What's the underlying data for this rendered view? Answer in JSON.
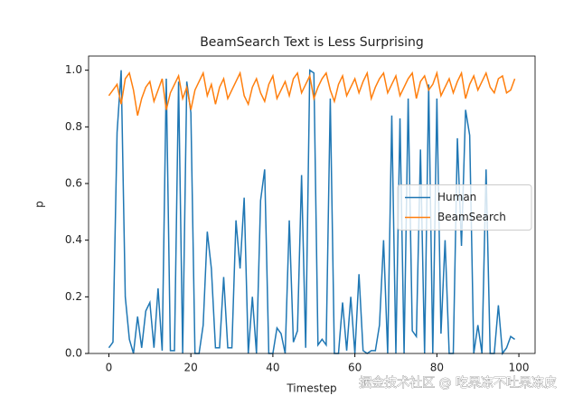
{
  "chart_data": {
    "type": "line",
    "title": "BeamSearch Text is Less Surprising",
    "xlabel": "Timestep",
    "ylabel": "p",
    "watermark": "掘金技术社区 @ 吃果冻不吐果冻皮",
    "x": [
      0,
      1,
      2,
      3,
      4,
      5,
      6,
      7,
      8,
      9,
      10,
      11,
      12,
      13,
      14,
      15,
      16,
      17,
      18,
      19,
      20,
      21,
      22,
      23,
      24,
      25,
      26,
      27,
      28,
      29,
      30,
      31,
      32,
      33,
      34,
      35,
      36,
      37,
      38,
      39,
      40,
      41,
      42,
      43,
      44,
      45,
      46,
      47,
      48,
      49,
      50,
      51,
      52,
      53,
      54,
      55,
      56,
      57,
      58,
      59,
      60,
      61,
      62,
      63,
      64,
      65,
      66,
      67,
      68,
      69,
      70,
      71,
      72,
      73,
      74,
      75,
      76,
      77,
      78,
      79,
      80,
      81,
      82,
      83,
      84,
      85,
      86,
      87,
      88,
      89,
      90,
      91,
      92,
      93,
      94,
      95,
      96,
      97,
      98,
      99
    ],
    "series": [
      {
        "name": "Human",
        "color": "#1f77b4",
        "values": [
          0.02,
          0.04,
          0.78,
          1.0,
          0.2,
          0.05,
          0.0,
          0.13,
          0.02,
          0.15,
          0.18,
          0.02,
          0.23,
          0.01,
          0.97,
          0.01,
          0.01,
          0.96,
          0.0,
          0.96,
          0.85,
          0.0,
          0.0,
          0.1,
          0.43,
          0.3,
          0.02,
          0.02,
          0.27,
          0.02,
          0.02,
          0.47,
          0.3,
          0.55,
          0.0,
          0.2,
          0.0,
          0.54,
          0.65,
          0.0,
          0.0,
          0.09,
          0.07,
          0.0,
          0.47,
          0.04,
          0.08,
          0.63,
          0.02,
          1.0,
          0.99,
          0.03,
          0.05,
          0.03,
          0.9,
          0.0,
          0.0,
          0.18,
          0.01,
          0.2,
          0.0,
          0.28,
          0.01,
          0.0,
          0.01,
          0.01,
          0.1,
          0.4,
          0.0,
          0.84,
          0.0,
          0.83,
          0.0,
          0.9,
          0.08,
          0.06,
          0.72,
          0.0,
          0.95,
          0.0,
          0.9,
          0.07,
          0.4,
          0.0,
          0.0,
          0.76,
          0.38,
          0.86,
          0.77,
          0.0,
          0.1,
          0.0,
          0.65,
          0.0,
          0.0,
          0.17,
          0.0,
          0.02,
          0.06,
          0.05
        ]
      },
      {
        "name": "BeamSearch",
        "color": "#ff7f0e",
        "values": [
          0.91,
          0.93,
          0.95,
          0.88,
          0.97,
          0.99,
          0.93,
          0.84,
          0.9,
          0.94,
          0.96,
          0.89,
          0.93,
          0.97,
          0.86,
          0.92,
          0.95,
          0.98,
          0.9,
          0.94,
          0.86,
          0.93,
          0.96,
          0.99,
          0.91,
          0.95,
          0.88,
          0.94,
          0.97,
          0.9,
          0.93,
          0.96,
          0.99,
          0.91,
          0.88,
          0.94,
          0.97,
          0.92,
          0.89,
          0.95,
          0.98,
          0.9,
          0.93,
          0.96,
          0.91,
          0.97,
          0.99,
          0.92,
          0.95,
          0.98,
          0.9,
          0.94,
          0.97,
          0.99,
          0.93,
          0.89,
          0.95,
          0.98,
          0.91,
          0.94,
          0.97,
          0.92,
          0.96,
          0.99,
          0.9,
          0.94,
          0.97,
          0.99,
          0.92,
          0.95,
          0.98,
          0.91,
          0.94,
          0.97,
          0.99,
          0.9,
          0.96,
          0.98,
          0.93,
          0.95,
          0.99,
          0.91,
          0.94,
          0.97,
          0.92,
          0.96,
          0.99,
          0.9,
          0.95,
          0.98,
          0.93,
          0.96,
          0.99,
          0.94,
          0.92,
          0.97,
          0.98,
          0.92,
          0.93,
          0.97
        ]
      }
    ],
    "xlim": [
      -4.95,
      103.95
    ],
    "xticks": [
      0,
      20,
      40,
      60,
      80,
      100
    ],
    "ylim": [
      0,
      1.05
    ],
    "yticks": [
      {
        "value": 0,
        "label": "0.0"
      },
      {
        "value": 0.2,
        "label": "0.2"
      },
      {
        "value": 0.4,
        "label": "0.4"
      },
      {
        "value": 0.6,
        "label": "0.6"
      },
      {
        "value": 0.8,
        "label": "0.8"
      },
      {
        "value": 1,
        "label": "1.0"
      }
    ],
    "grid": false,
    "legend": "center right"
  }
}
